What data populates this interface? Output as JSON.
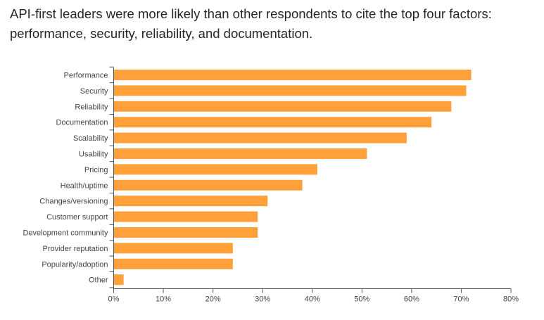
{
  "chart_data": {
    "type": "bar",
    "orientation": "horizontal",
    "title": "API-first leaders were more likely than other respondents to cite the top four factors: performance, security, reliability, and documentation.",
    "xlabel": "",
    "ylabel": "",
    "categories": [
      "Performance",
      "Security",
      "Reliability",
      "Documentation",
      "Scalability",
      "Usability",
      "Pricing",
      "Health/uptime",
      "Changes/versioning",
      "Customer support",
      "Development community",
      "Provider reputation",
      "Popularity/adoption",
      "Other"
    ],
    "values": [
      72,
      71,
      68,
      64,
      59,
      51,
      41,
      38,
      31,
      29,
      29,
      24,
      24,
      2
    ],
    "xlim": [
      0,
      80
    ],
    "xticks": [
      0,
      10,
      20,
      30,
      40,
      50,
      60,
      70,
      80
    ],
    "xtick_labels": [
      "0%",
      "10%",
      "20%",
      "30%",
      "40%",
      "50%",
      "60%",
      "70%",
      "80%"
    ],
    "grid": false,
    "bar_color": "#FFA03A",
    "axis_color": "#555555"
  }
}
